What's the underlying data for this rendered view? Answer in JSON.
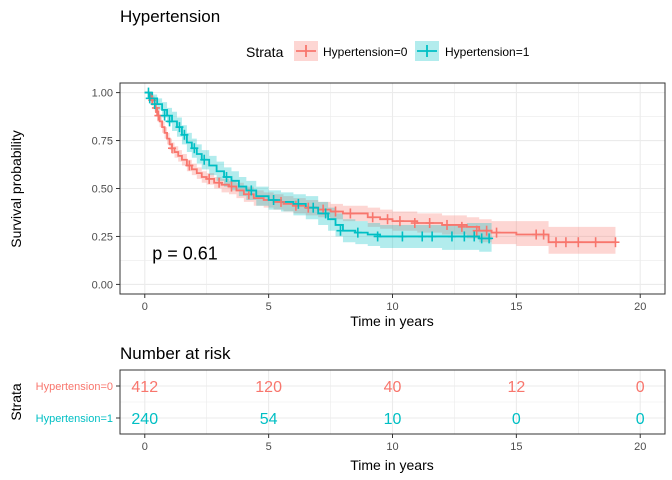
{
  "chart_data": [
    {
      "type": "line",
      "subtype": "kaplan-meier",
      "title": "Hypertension",
      "xlabel": "Time in years",
      "ylabel": "Survival probability",
      "xlim": [
        -1,
        21
      ],
      "ylim": [
        -0.05,
        1.05
      ],
      "x_ticks": [
        0,
        5,
        10,
        15,
        20
      ],
      "x_tick_labels": [
        "0",
        "5",
        "10",
        "15",
        "20"
      ],
      "y_ticks": [
        0,
        0.25,
        0.5,
        0.75,
        1.0
      ],
      "y_tick_labels": [
        "0.00",
        "0.25",
        "0.50",
        "0.75",
        "1.00"
      ],
      "grid": true,
      "legend": {
        "title": "Strata",
        "position": "top"
      },
      "annotation": "p = 0.61",
      "annotation_at": {
        "x": 0.3,
        "y": 0.16
      },
      "series": [
        {
          "name": "Hypertension=0",
          "color": "#F8766D",
          "x": [
            0,
            0.25,
            0.4,
            0.5,
            0.6,
            0.7,
            0.8,
            0.9,
            1.0,
            1.1,
            1.2,
            1.35,
            1.5,
            1.7,
            1.9,
            2.1,
            2.3,
            2.5,
            2.8,
            3.1,
            3.4,
            3.7,
            4.0,
            4.4,
            4.8,
            5.2,
            5.6,
            6.0,
            6.5,
            7.0,
            7.5,
            8.0,
            9.0,
            9.5,
            10.0,
            11.0,
            12.0,
            13.0,
            13.5,
            14.0,
            15.0,
            16.0,
            16.3,
            17.0,
            18.0,
            19.0
          ],
          "y": [
            1.0,
            0.96,
            0.92,
            0.88,
            0.85,
            0.82,
            0.79,
            0.76,
            0.73,
            0.71,
            0.69,
            0.67,
            0.65,
            0.62,
            0.6,
            0.58,
            0.56,
            0.55,
            0.53,
            0.52,
            0.51,
            0.49,
            0.47,
            0.45,
            0.44,
            0.43,
            0.42,
            0.41,
            0.4,
            0.39,
            0.38,
            0.37,
            0.35,
            0.34,
            0.33,
            0.32,
            0.31,
            0.3,
            0.28,
            0.27,
            0.26,
            0.26,
            0.22,
            0.22,
            0.22,
            0.22
          ],
          "lower": [
            1.0,
            0.94,
            0.9,
            0.85,
            0.82,
            0.79,
            0.76,
            0.73,
            0.7,
            0.68,
            0.66,
            0.64,
            0.62,
            0.59,
            0.57,
            0.55,
            0.53,
            0.52,
            0.5,
            0.48,
            0.47,
            0.45,
            0.43,
            0.41,
            0.4,
            0.39,
            0.38,
            0.37,
            0.36,
            0.35,
            0.34,
            0.33,
            0.3,
            0.29,
            0.28,
            0.27,
            0.26,
            0.24,
            0.22,
            0.21,
            0.2,
            0.2,
            0.16,
            0.16,
            0.16,
            0.16
          ],
          "upper": [
            1.0,
            0.98,
            0.95,
            0.91,
            0.88,
            0.85,
            0.82,
            0.79,
            0.76,
            0.74,
            0.72,
            0.7,
            0.68,
            0.65,
            0.63,
            0.61,
            0.59,
            0.58,
            0.56,
            0.55,
            0.54,
            0.53,
            0.51,
            0.49,
            0.48,
            0.47,
            0.46,
            0.45,
            0.44,
            0.43,
            0.42,
            0.41,
            0.4,
            0.39,
            0.38,
            0.37,
            0.36,
            0.35,
            0.34,
            0.33,
            0.33,
            0.33,
            0.3,
            0.3,
            0.3,
            0.3
          ],
          "censor_x": [
            0.3,
            0.45,
            0.55,
            1.1,
            1.8,
            2.6,
            3.0,
            3.5,
            4.2,
            5.5,
            6.1,
            6.6,
            7.2,
            7.7,
            8.3,
            9.2,
            9.8,
            10.3,
            10.9,
            11.5,
            12.2,
            12.8,
            13.4,
            13.8,
            14.2,
            15.8,
            16.1,
            16.6,
            17.0,
            17.5,
            18.2,
            19.0
          ],
          "censor_y": [
            0.96,
            0.92,
            0.88,
            0.71,
            0.62,
            0.55,
            0.53,
            0.51,
            0.47,
            0.43,
            0.41,
            0.4,
            0.39,
            0.38,
            0.37,
            0.35,
            0.34,
            0.33,
            0.32,
            0.32,
            0.31,
            0.3,
            0.28,
            0.28,
            0.27,
            0.26,
            0.26,
            0.22,
            0.22,
            0.22,
            0.22,
            0.22
          ]
        },
        {
          "name": "Hypertension=1",
          "color": "#00BFC4",
          "x": [
            0,
            0.3,
            0.5,
            0.7,
            0.9,
            1.1,
            1.3,
            1.5,
            1.7,
            1.9,
            2.1,
            2.3,
            2.6,
            2.9,
            3.2,
            3.5,
            3.8,
            4.1,
            4.5,
            5.0,
            5.5,
            6.0,
            6.5,
            7.0,
            7.4,
            7.7,
            8.0,
            8.5,
            9.0,
            9.5,
            10.0,
            11.0,
            12.0,
            13.0,
            13.5,
            14.0
          ],
          "y": [
            1.0,
            0.97,
            0.94,
            0.91,
            0.88,
            0.85,
            0.82,
            0.78,
            0.74,
            0.71,
            0.68,
            0.65,
            0.62,
            0.59,
            0.56,
            0.54,
            0.51,
            0.49,
            0.46,
            0.44,
            0.43,
            0.42,
            0.4,
            0.37,
            0.34,
            0.31,
            0.28,
            0.27,
            0.26,
            0.25,
            0.25,
            0.25,
            0.25,
            0.25,
            0.24,
            0.24
          ],
          "lower": [
            1.0,
            0.95,
            0.91,
            0.87,
            0.84,
            0.8,
            0.77,
            0.73,
            0.69,
            0.66,
            0.63,
            0.6,
            0.57,
            0.54,
            0.51,
            0.49,
            0.46,
            0.44,
            0.41,
            0.39,
            0.38,
            0.36,
            0.34,
            0.31,
            0.28,
            0.25,
            0.22,
            0.21,
            0.2,
            0.19,
            0.19,
            0.19,
            0.18,
            0.18,
            0.17,
            0.17
          ],
          "upper": [
            1.0,
            0.99,
            0.97,
            0.95,
            0.92,
            0.9,
            0.87,
            0.83,
            0.79,
            0.76,
            0.73,
            0.7,
            0.67,
            0.64,
            0.61,
            0.59,
            0.56,
            0.54,
            0.51,
            0.49,
            0.48,
            0.47,
            0.46,
            0.43,
            0.4,
            0.37,
            0.34,
            0.33,
            0.32,
            0.31,
            0.31,
            0.31,
            0.31,
            0.32,
            0.32,
            0.32
          ],
          "censor_x": [
            0.15,
            0.2,
            0.4,
            0.8,
            1.0,
            1.4,
            1.6,
            2.0,
            2.4,
            3.3,
            4.3,
            5.2,
            6.2,
            6.8,
            7.3,
            7.9,
            8.6,
            9.4,
            10.4,
            11.2,
            11.6,
            12.4,
            12.9,
            13.3,
            13.6,
            13.9
          ],
          "censor_y": [
            1.0,
            0.97,
            0.94,
            0.88,
            0.85,
            0.82,
            0.78,
            0.71,
            0.65,
            0.56,
            0.49,
            0.44,
            0.42,
            0.4,
            0.37,
            0.28,
            0.27,
            0.25,
            0.25,
            0.25,
            0.25,
            0.25,
            0.25,
            0.25,
            0.24,
            0.24
          ]
        }
      ]
    },
    {
      "type": "table",
      "title": "Number at risk",
      "xlabel": "Time in years",
      "ylabel": "Strata",
      "xlim": [
        -1,
        21
      ],
      "x_ticks": [
        0,
        5,
        10,
        15,
        20
      ],
      "x_tick_labels": [
        "0",
        "5",
        "10",
        "15",
        "20"
      ],
      "grid": true,
      "rows": [
        {
          "name": "Hypertension=0",
          "color": "#F8766D",
          "times": [
            0,
            5,
            10,
            15,
            20
          ],
          "labels": [
            "412",
            "120",
            "40",
            "12",
            "0"
          ]
        },
        {
          "name": "Hypertension=1",
          "color": "#00BFC4",
          "times": [
            0,
            5,
            10,
            15,
            20
          ],
          "labels": [
            "240",
            "54",
            "10",
            "0",
            "0"
          ]
        }
      ]
    }
  ]
}
